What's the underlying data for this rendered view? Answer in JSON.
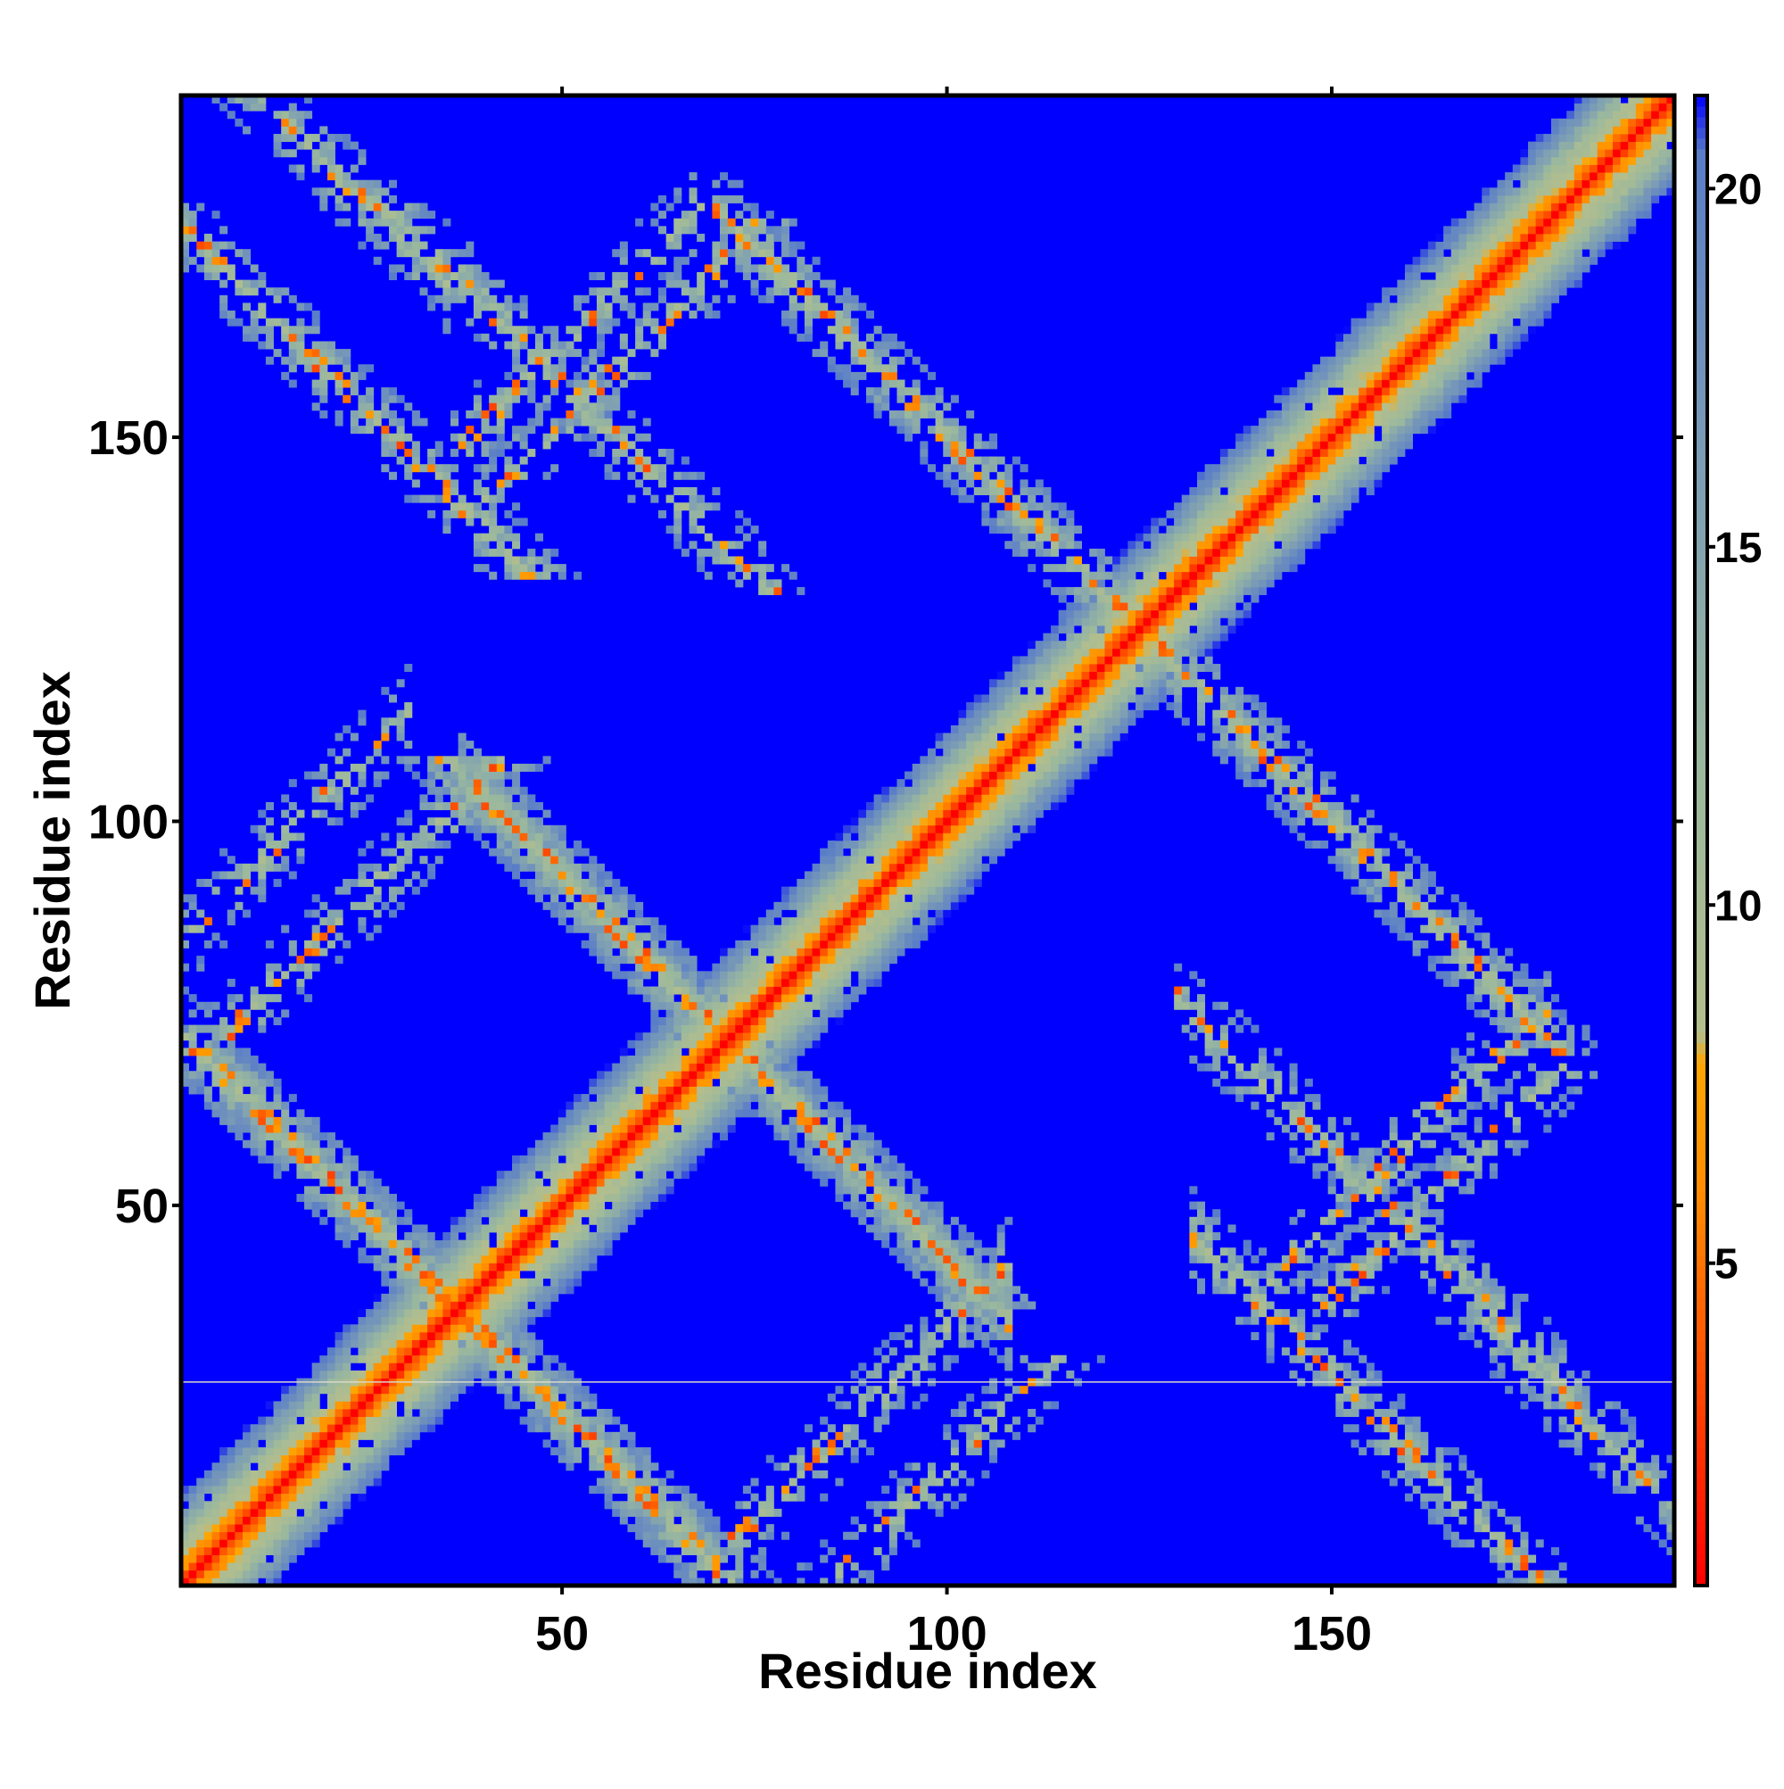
{
  "chart_data": {
    "type": "heatmap",
    "title": "",
    "xlabel": "Residue index",
    "ylabel": "Residue index",
    "n_residues": 194,
    "xlim": [
      1,
      194
    ],
    "ylim": [
      1,
      194
    ],
    "x_ticks": [
      50,
      100,
      150
    ],
    "y_ticks": [
      50,
      100,
      150
    ],
    "colorbar": {
      "ticks": [
        5,
        10,
        15,
        20
      ],
      "range": [
        0.5,
        21.3
      ],
      "background_value": 21.3,
      "stops": [
        {
          "v": 0.5,
          "color": "#ff0000"
        },
        {
          "v": 4.0,
          "color": "#ff5a00"
        },
        {
          "v": 6.0,
          "color": "#ff8c00"
        },
        {
          "v": 7.8,
          "color": "#ffa500"
        },
        {
          "v": 8.2,
          "color": "#b4be8c"
        },
        {
          "v": 12.0,
          "color": "#9ab89e"
        },
        {
          "v": 16.0,
          "color": "#7d9eb4"
        },
        {
          "v": 20.5,
          "color": "#5a7dc8"
        },
        {
          "v": 21.3,
          "color": "#0000ff"
        }
      ]
    },
    "features": [
      {
        "kind": "diagonal",
        "start": 1,
        "end": 194
      },
      {
        "kind": "antiparallel",
        "i_range": [
          1,
          70
        ],
        "sum": 73,
        "density": 0.7
      },
      {
        "kind": "antiparallel",
        "i_range": [
          37,
          108
        ],
        "sum": 143,
        "density": 0.75
      },
      {
        "kind": "antiparallel",
        "i_range": [
          70,
          130
        ],
        "sum": 250,
        "density": 0.7
      },
      {
        "kind": "antiparallel",
        "i_range": [
          132,
          180
        ],
        "sum": 178,
        "density": 0.55
      },
      {
        "kind": "antiparallel",
        "i_range": [
          1,
          35
        ],
        "sum": 205,
        "density": 0.5
      },
      {
        "kind": "antiparallel",
        "i_range": [
          130,
          180
        ],
        "sum": 207,
        "density": 0.5
      },
      {
        "kind": "parallel",
        "i_range": [
          36,
          68
        ],
        "diff": 112,
        "density": 0.45
      },
      {
        "kind": "parallel",
        "i_range": [
          1,
          30
        ],
        "diff": 84,
        "density": 0.45
      },
      {
        "kind": "parallel",
        "i_range": [
          72,
          108
        ],
        "diff": -66,
        "density": 0.45
      },
      {
        "kind": "parallel",
        "i_range": [
          140,
          178
        ],
        "diff": -102,
        "density": 0.45
      }
    ],
    "horizontal_line_at": 27
  }
}
